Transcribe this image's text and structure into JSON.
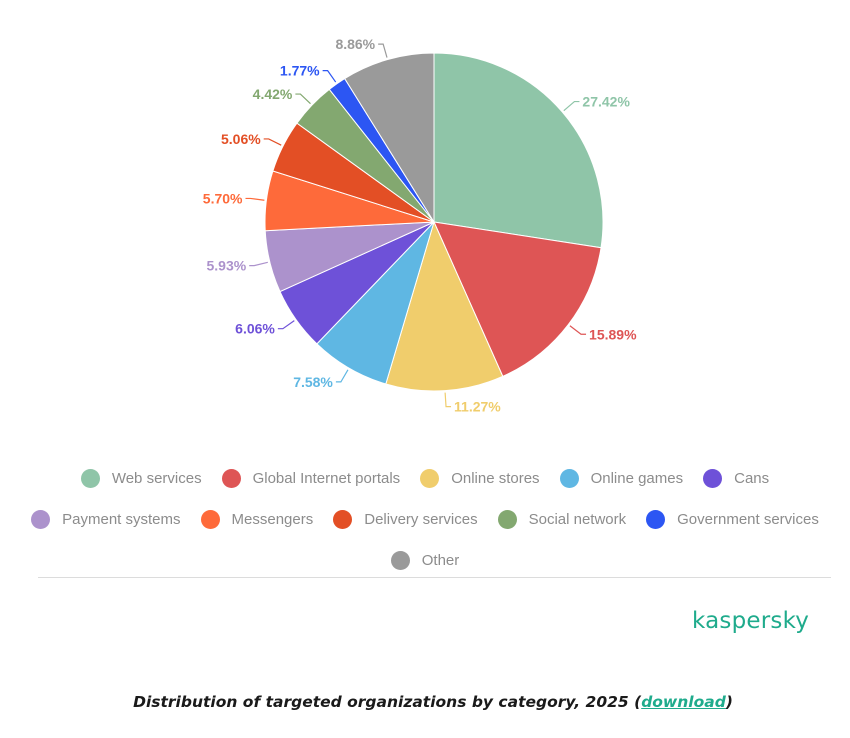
{
  "chart_data": {
    "type": "pie",
    "title": "",
    "categories": [
      "Web services",
      "Global Internet portals",
      "Online stores",
      "Online games",
      "Cans",
      "Payment systems",
      "Messengers",
      "Delivery services",
      "Social network",
      "Government services",
      "Other"
    ],
    "values": [
      27.42,
      15.89,
      11.27,
      7.58,
      6.06,
      5.93,
      5.7,
      5.06,
      4.42,
      1.77,
      8.86
    ],
    "value_labels": [
      "27.42%",
      "15.89%",
      "11.27%",
      "7.58%",
      "6.06%",
      "5.93%",
      "5.70%",
      "5.06%",
      "4.42%",
      "1.77%",
      "8.86%"
    ],
    "colors": [
      "#8fc5a8",
      "#de5555",
      "#f0cd6c",
      "#5fb7e3",
      "#6e51d8",
      "#ac92cc",
      "#fe6a3a",
      "#e34f25",
      "#83a870",
      "#2c56f3",
      "#9a9a9a"
    ],
    "start_angle_deg": 0,
    "direction": "clockwise",
    "legend_position": "bottom"
  },
  "legend_rows": [
    [
      0,
      1,
      2,
      3,
      4
    ],
    [
      5,
      6,
      7,
      8,
      9
    ],
    [
      10
    ]
  ],
  "brand": {
    "logo_text": "kaspersky"
  },
  "caption": {
    "text": "Distribution of targeted organizations by category, 2025 (",
    "link": "download",
    "close": ")"
  }
}
